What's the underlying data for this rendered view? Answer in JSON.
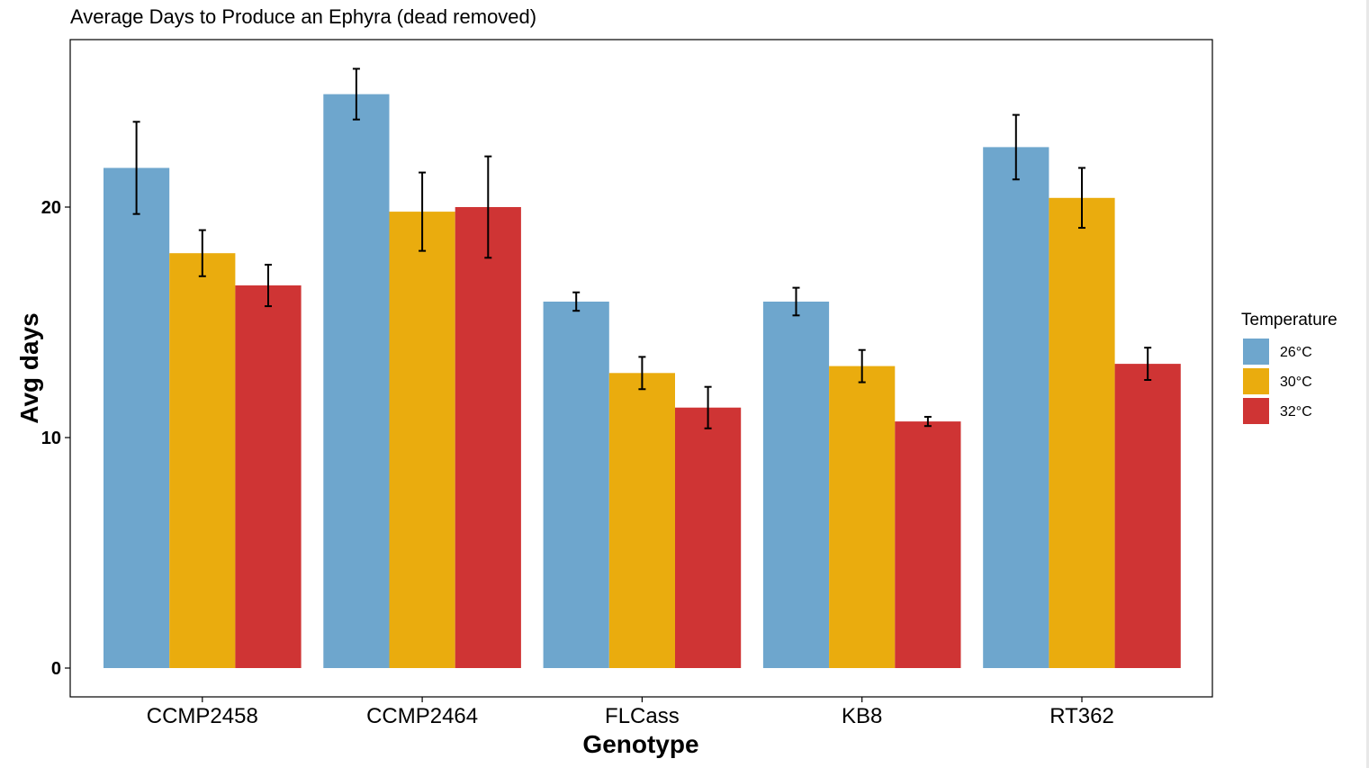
{
  "chart_data": {
    "type": "bar",
    "title": "Average Days to Produce an Ephyra (dead removed)",
    "xlabel": "Genotype",
    "ylabel": "Avg days",
    "ylim": [
      0,
      25.9
    ],
    "yticks": [
      0,
      10,
      20
    ],
    "grid": false,
    "legend_position": "right",
    "legend_title": "Temperature",
    "categories": [
      "CCMP2458",
      "CCMP2464",
      "FLCass",
      "KB8",
      "RT362"
    ],
    "series": [
      {
        "name": "26°C",
        "color": "#6ea6cd",
        "values": [
          21.7,
          24.9,
          15.9,
          15.9,
          22.6
        ],
        "error": [
          2.0,
          1.1,
          0.4,
          0.6,
          1.4
        ]
      },
      {
        "name": "30°C",
        "color": "#eaac0e",
        "values": [
          18.0,
          19.8,
          12.8,
          13.1,
          20.4
        ],
        "error": [
          1.0,
          1.7,
          0.7,
          0.7,
          1.3
        ]
      },
      {
        "name": "32°C",
        "color": "#cf3434",
        "values": [
          16.6,
          20.0,
          11.3,
          10.7,
          13.2
        ],
        "error": [
          0.9,
          2.2,
          0.9,
          0.2,
          0.7
        ]
      }
    ]
  }
}
